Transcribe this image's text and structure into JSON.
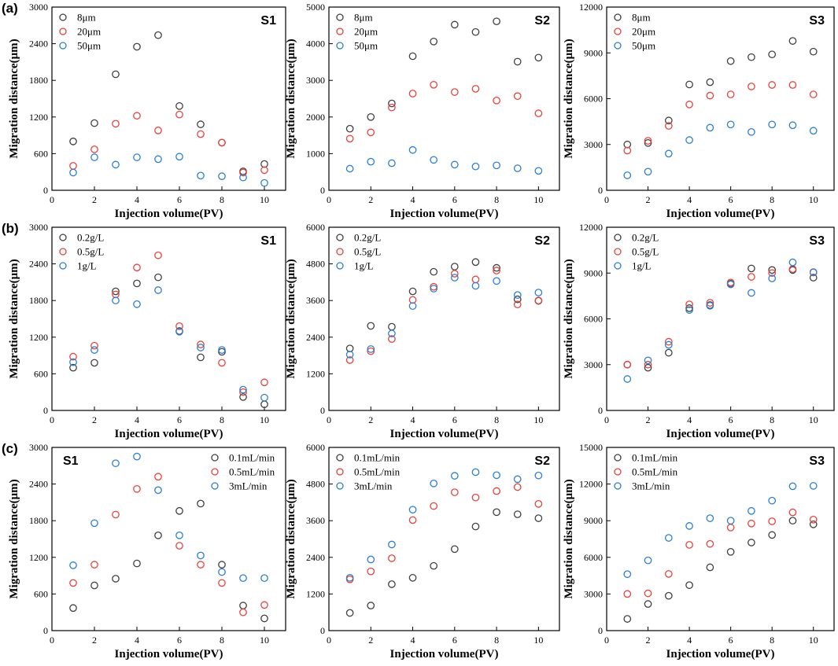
{
  "colors": {
    "series": [
      "#404040",
      "#e8423b",
      "#2c7fd1"
    ]
  },
  "chart_data": [
    {
      "type": "scatter",
      "row": "(a)",
      "title": "S1",
      "xlabel": "Injection volume(PV)",
      "ylabel": "Migration distance(μm)",
      "xlim": [
        0,
        11
      ],
      "ylim": [
        0,
        3000
      ],
      "xticks": [
        0,
        2,
        4,
        6,
        8,
        10
      ],
      "yticks": [
        0,
        600,
        1200,
        1800,
        2400,
        3000
      ],
      "legend_position": "top-left",
      "x": [
        1,
        2,
        3,
        4,
        5,
        6,
        7,
        8,
        9,
        10
      ],
      "series": [
        {
          "name": "8μm",
          "values": [
            800,
            1100,
            1900,
            2350,
            2540,
            1380,
            1080,
            780,
            310,
            430
          ]
        },
        {
          "name": "20μm",
          "values": [
            400,
            670,
            1090,
            1220,
            980,
            1240,
            920,
            780,
            290,
            330
          ]
        },
        {
          "name": "50μm",
          "values": [
            290,
            540,
            420,
            540,
            510,
            550,
            240,
            230,
            210,
            120
          ]
        }
      ]
    },
    {
      "type": "scatter",
      "row": "(a)",
      "title": "S2",
      "xlabel": "Injection volume(PV)",
      "ylabel": "Migration distance(μm)",
      "xlim": [
        0,
        11
      ],
      "ylim": [
        0,
        5000
      ],
      "xticks": [
        0,
        2,
        4,
        6,
        8,
        10
      ],
      "yticks": [
        0,
        1000,
        2000,
        3000,
        4000,
        5000
      ],
      "legend_position": "top-left",
      "x": [
        1,
        2,
        3,
        4,
        5,
        6,
        7,
        8,
        9,
        10
      ],
      "series": [
        {
          "name": "8μm",
          "values": [
            1680,
            2000,
            2370,
            3660,
            4060,
            4520,
            4320,
            4610,
            3510,
            3620
          ]
        },
        {
          "name": "20μm",
          "values": [
            1410,
            1580,
            2260,
            2640,
            2880,
            2680,
            2770,
            2450,
            2570,
            2100
          ]
        },
        {
          "name": "50μm",
          "values": [
            590,
            780,
            740,
            1100,
            830,
            700,
            650,
            680,
            600,
            530
          ]
        }
      ]
    },
    {
      "type": "scatter",
      "row": "(a)",
      "title": "S3",
      "xlabel": "Injection volume(PV)",
      "ylabel": "Migration distance(μm)",
      "xlim": [
        0,
        11
      ],
      "ylim": [
        0,
        12000
      ],
      "xticks": [
        0,
        2,
        4,
        6,
        8,
        10
      ],
      "yticks": [
        0,
        3000,
        6000,
        9000,
        12000
      ],
      "legend_position": "top-left",
      "x": [
        1,
        2,
        3,
        4,
        5,
        6,
        7,
        8,
        9,
        10
      ],
      "series": [
        {
          "name": "8μm",
          "values": [
            3000,
            3100,
            4570,
            6930,
            7080,
            8460,
            8720,
            8900,
            9780,
            9080
          ]
        },
        {
          "name": "20μm",
          "values": [
            2600,
            3240,
            4220,
            5620,
            6200,
            6280,
            6800,
            6900,
            6900,
            6280
          ]
        },
        {
          "name": "50μm",
          "values": [
            980,
            1220,
            2400,
            3290,
            4100,
            4310,
            3820,
            4310,
            4260,
            3900
          ]
        }
      ]
    },
    {
      "type": "scatter",
      "row": "(b)",
      "title": "S1",
      "xlabel": "Injection volume(PV)",
      "ylabel": "Migration distance(μm)",
      "xlim": [
        0,
        11
      ],
      "ylim": [
        0,
        3000
      ],
      "xticks": [
        0,
        2,
        4,
        6,
        8,
        10
      ],
      "yticks": [
        0,
        600,
        1200,
        1800,
        2400,
        3000
      ],
      "legend_position": "top-left",
      "x": [
        1,
        2,
        3,
        4,
        5,
        6,
        7,
        8,
        9,
        10
      ],
      "series": [
        {
          "name": "0.2g/L",
          "values": [
            700,
            780,
            1950,
            2080,
            2180,
            1300,
            870,
            960,
            220,
            100
          ]
        },
        {
          "name": "0.5g/L",
          "values": [
            880,
            1060,
            1900,
            2340,
            2540,
            1380,
            1080,
            780,
            300,
            460
          ]
        },
        {
          "name": "1g/L",
          "values": [
            790,
            990,
            1800,
            1740,
            1970,
            1290,
            1030,
            990,
            340,
            210
          ]
        }
      ]
    },
    {
      "type": "scatter",
      "row": "(b)",
      "title": "S2",
      "xlabel": "Injection volume(PV)",
      "ylabel": "Migration distance(μm)",
      "xlim": [
        0,
        11
      ],
      "ylim": [
        0,
        6000
      ],
      "xticks": [
        0,
        2,
        4,
        6,
        8,
        10
      ],
      "yticks": [
        0,
        1200,
        2400,
        3600,
        4800,
        6000
      ],
      "legend_position": "top-left",
      "x": [
        1,
        2,
        3,
        4,
        5,
        6,
        7,
        8,
        9,
        10
      ],
      "series": [
        {
          "name": "0.2g/L",
          "values": [
            2030,
            2770,
            2740,
            3900,
            4540,
            4710,
            4860,
            4670,
            3640,
            3590
          ]
        },
        {
          "name": "0.5g/L",
          "values": [
            1650,
            1940,
            2340,
            3620,
            4050,
            4480,
            4290,
            4580,
            3470,
            3600
          ]
        },
        {
          "name": "1g/L",
          "values": [
            1830,
            2010,
            2520,
            3420,
            3990,
            4350,
            4080,
            4240,
            3780,
            3860
          ]
        }
      ]
    },
    {
      "type": "scatter",
      "row": "(b)",
      "title": "S3",
      "xlabel": "Injection volume(PV)",
      "ylabel": "Migration distance(μm)",
      "xlim": [
        0,
        11
      ],
      "ylim": [
        0,
        12000
      ],
      "xticks": [
        0,
        2,
        4,
        6,
        8,
        10
      ],
      "yticks": [
        0,
        3000,
        6000,
        9000,
        12000
      ],
      "legend_position": "top-left",
      "x": [
        1,
        2,
        3,
        4,
        5,
        6,
        7,
        8,
        9,
        10
      ],
      "series": [
        {
          "name": "0.2g/L",
          "values": [
            3000,
            2800,
            3780,
            6700,
            6900,
            8300,
            9300,
            9200,
            9200,
            8700
          ]
        },
        {
          "name": "0.5g/L",
          "values": [
            3000,
            3000,
            4500,
            6950,
            7050,
            8380,
            8750,
            9000,
            9260,
            9040
          ]
        },
        {
          "name": "1g/L",
          "values": [
            2060,
            3280,
            4300,
            6580,
            6860,
            8260,
            7700,
            8650,
            9700,
            9060
          ]
        }
      ]
    },
    {
      "type": "scatter",
      "row": "(c)",
      "title": "S1",
      "xlabel": "Injection volume(PV)",
      "ylabel": "Migration distance(μm)",
      "xlim": [
        0,
        11
      ],
      "ylim": [
        0,
        3000
      ],
      "xticks": [
        0,
        2,
        4,
        6,
        8,
        10
      ],
      "yticks": [
        0,
        600,
        1200,
        1800,
        2400,
        3000
      ],
      "legend_position": "top-right",
      "x": [
        1,
        2,
        3,
        4,
        5,
        6,
        7,
        8,
        9,
        10
      ],
      "series": [
        {
          "name": "0.1mL/min",
          "values": [
            370,
            740,
            850,
            1100,
            1560,
            1960,
            2080,
            1080,
            410,
            200
          ]
        },
        {
          "name": "0.5mL/min",
          "values": [
            780,
            1080,
            1900,
            2320,
            2520,
            1390,
            1080,
            780,
            300,
            420
          ]
        },
        {
          "name": "3mL/min",
          "values": [
            1070,
            1760,
            2740,
            2850,
            2300,
            1560,
            1230,
            960,
            860,
            860
          ]
        }
      ]
    },
    {
      "type": "scatter",
      "row": "(c)",
      "title": "S2",
      "xlabel": "Injection volume(PV)",
      "ylabel": "Migration distance(μm)",
      "xlim": [
        0,
        11
      ],
      "ylim": [
        0,
        6000
      ],
      "xticks": [
        0,
        2,
        4,
        6,
        8,
        10
      ],
      "yticks": [
        0,
        1200,
        2400,
        3600,
        4800,
        6000
      ],
      "legend_position": "top-left",
      "x": [
        1,
        2,
        3,
        4,
        5,
        6,
        7,
        8,
        9,
        10
      ],
      "series": [
        {
          "name": "0.1mL/min",
          "values": [
            580,
            820,
            1520,
            1730,
            2120,
            2670,
            3410,
            3880,
            3810,
            3680
          ]
        },
        {
          "name": "0.5mL/min",
          "values": [
            1680,
            1940,
            2370,
            3620,
            4080,
            4530,
            4360,
            4570,
            4700,
            4150
          ]
        },
        {
          "name": "3mL/min",
          "values": [
            1730,
            2330,
            2820,
            3960,
            4820,
            5070,
            5190,
            5090,
            4960,
            5080
          ]
        }
      ]
    },
    {
      "type": "scatter",
      "row": "(c)",
      "title": "S3",
      "xlabel": "Injection volume(PV)",
      "ylabel": "Migration distance(μm)",
      "xlim": [
        0,
        11
      ],
      "ylim": [
        0,
        15000
      ],
      "xticks": [
        0,
        2,
        4,
        6,
        8,
        10
      ],
      "yticks": [
        0,
        3000,
        6000,
        9000,
        12000,
        15000
      ],
      "legend_position": "top-left",
      "x": [
        1,
        2,
        3,
        4,
        5,
        6,
        7,
        8,
        9,
        10
      ],
      "series": [
        {
          "name": "0.1mL/min",
          "values": [
            960,
            2180,
            2850,
            3720,
            5180,
            6450,
            7210,
            7830,
            9000,
            8700
          ]
        },
        {
          "name": "0.5mL/min",
          "values": [
            3000,
            3050,
            4640,
            7020,
            7100,
            8440,
            8770,
            8950,
            9680,
            9090
          ]
        },
        {
          "name": "3mL/min",
          "values": [
            4620,
            5750,
            7590,
            8570,
            9200,
            9000,
            9800,
            10640,
            11820,
            11850
          ]
        }
      ]
    }
  ]
}
